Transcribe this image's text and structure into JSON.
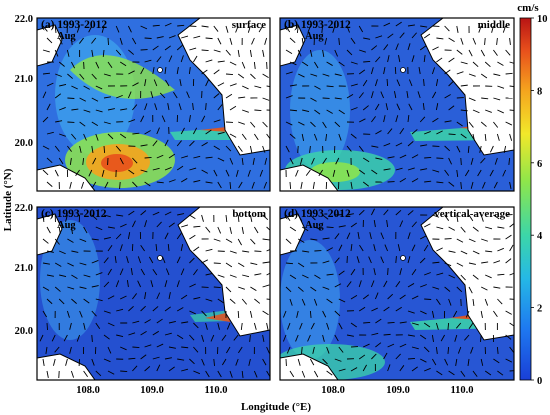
{
  "chart_data": {
    "type": "heatmap",
    "xlabel": "Longitude (°E)",
    "ylabel": "Latitude (°N)",
    "x_ticks": [
      "108.0",
      "109.0",
      "110.0"
    ],
    "y_ticks": [
      "22.0",
      "21.0",
      "20.0"
    ],
    "xlim": [
      107.2,
      110.8
    ],
    "ylim": [
      19.3,
      22.0
    ],
    "colorbar": {
      "unit": "cm/s",
      "ticks": [
        "10",
        "8",
        "6",
        "4",
        "2",
        "0"
      ],
      "range": [
        0,
        10
      ],
      "colors": [
        "#1a3fd6",
        "#1e78f0",
        "#25b8e6",
        "#3cd6a8",
        "#8fe64a",
        "#f2e82a",
        "#f5a41e",
        "#e8501c",
        "#b81414"
      ]
    },
    "panels": [
      {
        "label": "(a) 1993-2012",
        "month": "Aug",
        "layer": "surface"
      },
      {
        "label": "(b) 1993-2012",
        "month": "Aug",
        "layer": "middle"
      },
      {
        "label": "(c) 1993-2012",
        "month": "Aug",
        "layer": "bottom"
      },
      {
        "label": "(d) 1993-2012",
        "month": "Aug",
        "layer": "vertical-average"
      }
    ]
  }
}
